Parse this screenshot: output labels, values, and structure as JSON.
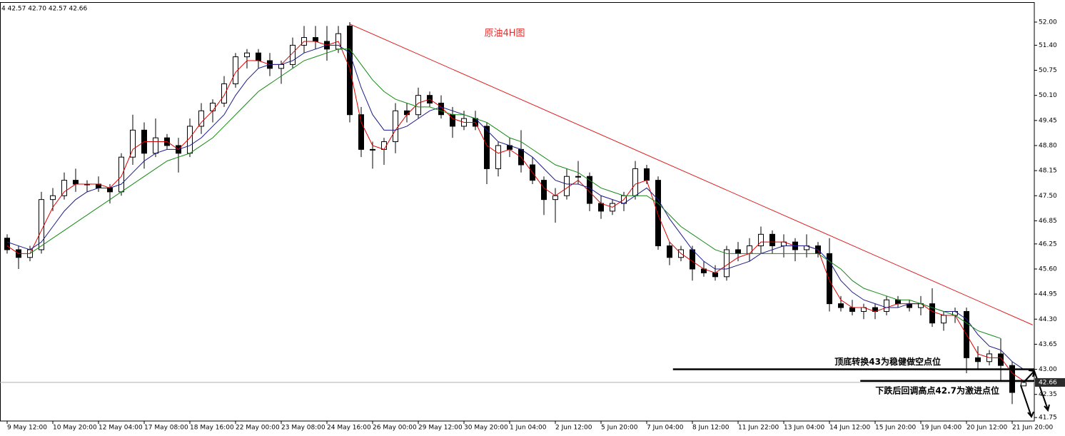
{
  "chart_data": {
    "type": "candlestick",
    "header": "4  42.57 42.70 42.57 42.66",
    "title": "原油4H图",
    "categories": [
      "9 May 12:00",
      null,
      null,
      null,
      "10 May 20:00",
      null,
      null,
      null,
      "12 May 04:00",
      null,
      null,
      null,
      "17 May 08:00",
      null,
      null,
      null,
      "18 May 16:00",
      null,
      null,
      null,
      "22 May 00:00",
      null,
      null,
      null,
      "23 May 08:00",
      null,
      null,
      null,
      "24 May 16:00",
      null,
      null,
      null,
      "26 May 00:00",
      null,
      null,
      null,
      "29 May 12:00",
      null,
      null,
      null,
      "30 May 20:00",
      null,
      null,
      null,
      "1 Jun 04:00",
      null,
      null,
      null,
      "2 Jun 12:00",
      null,
      null,
      null,
      "5 Jun 20:00",
      null,
      null,
      null,
      "7 Jun 04:00",
      null,
      null,
      null,
      "8 Jun 12:00",
      null,
      null,
      null,
      "11 Jun 22:00",
      null,
      null,
      null,
      "13 Jun 04:00",
      null,
      null,
      null,
      "14 Jun 12:00",
      null,
      null,
      null,
      "15 Jun 20:00",
      null,
      null,
      null,
      "19 Jun 04:00",
      null,
      null,
      null,
      "20 Jun 12:00",
      null,
      null,
      null,
      "21 Jun 20:00",
      null
    ],
    "open": [
      46.4,
      46.1,
      45.9,
      46.1,
      47.4,
      47.5,
      47.9,
      47.8,
      47.8,
      47.7,
      47.6,
      48.5,
      49.2,
      48.6,
      49.0,
      48.8,
      48.6,
      49.3,
      49.7,
      49.9,
      50.4,
      51.1,
      51.2,
      51.0,
      50.8,
      50.9,
      51.4,
      51.6,
      51.5,
      51.3,
      51.9,
      49.6,
      48.7,
      48.7,
      48.9,
      49.7,
      49.6,
      50.1,
      49.9,
      49.6,
      49.3,
      49.5,
      49.3,
      48.2,
      48.8,
      48.7,
      48.3,
      47.9,
      47.4,
      47.5,
      48.0,
      48.0,
      47.3,
      47.1,
      47.3,
      47.5,
      48.2,
      47.9,
      46.2,
      45.9,
      46.1,
      45.6,
      45.5,
      45.4,
      46.1,
      46.0,
      46.2,
      46.5,
      46.2,
      46.3,
      46.1,
      46.2,
      46.0,
      44.7,
      44.6,
      44.5,
      44.6,
      44.5,
      44.8,
      44.7,
      44.6,
      44.7,
      44.2,
      44.4,
      44.5,
      43.3,
      43.2,
      43.4,
      43.1,
      42.57
    ],
    "high": [
      46.5,
      46.2,
      46.2,
      47.6,
      47.7,
      48.1,
      48.2,
      47.9,
      48.0,
      47.8,
      48.6,
      49.6,
      49.4,
      49.5,
      49.1,
      49.0,
      49.5,
      49.9,
      50.0,
      50.6,
      51.2,
      51.3,
      51.3,
      51.2,
      51.0,
      51.6,
      51.9,
      51.9,
      51.9,
      51.9,
      52.0,
      49.8,
      48.9,
      49.0,
      49.9,
      49.9,
      50.3,
      50.2,
      50.1,
      49.8,
      49.7,
      49.7,
      49.4,
      48.9,
      49.0,
      49.2,
      48.5,
      48.0,
      47.7,
      48.2,
      48.4,
      48.1,
      47.5,
      47.4,
      47.6,
      48.4,
      48.3,
      48.0,
      46.3,
      46.2,
      46.2,
      45.8,
      45.7,
      46.2,
      46.3,
      46.4,
      46.7,
      46.6,
      46.5,
      46.4,
      46.5,
      46.3,
      46.4,
      44.9,
      44.8,
      44.7,
      44.7,
      44.9,
      44.9,
      44.8,
      44.9,
      45.1,
      44.5,
      44.6,
      44.6,
      43.6,
      43.5,
      43.8,
      43.2,
      42.7
    ],
    "low": [
      46.0,
      45.6,
      45.8,
      46.0,
      47.1,
      47.4,
      47.6,
      47.6,
      47.6,
      47.3,
      47.5,
      48.3,
      48.2,
      48.5,
      48.7,
      48.1,
      48.5,
      49.1,
      49.4,
      49.8,
      50.3,
      50.8,
      50.8,
      50.6,
      50.4,
      50.8,
      51.2,
      51.3,
      51.0,
      51.2,
      49.4,
      48.5,
      48.2,
      48.3,
      48.6,
      49.4,
      49.5,
      49.8,
      49.5,
      49.0,
      49.2,
      49.2,
      47.8,
      48.0,
      48.5,
      48.1,
      47.8,
      47.0,
      46.8,
      47.4,
      47.8,
      47.1,
      46.9,
      47.0,
      47.1,
      47.4,
      47.8,
      46.1,
      45.7,
      45.8,
      45.3,
      45.4,
      45.3,
      45.3,
      45.8,
      45.8,
      46.0,
      46.0,
      45.9,
      45.8,
      45.9,
      45.9,
      44.5,
      44.5,
      44.4,
      44.3,
      44.3,
      44.4,
      44.6,
      44.5,
      44.4,
      44.1,
      44.0,
      44.2,
      42.9,
      43.0,
      43.1,
      42.7,
      42.1,
      42.57
    ],
    "close": [
      46.1,
      45.9,
      46.1,
      47.4,
      47.5,
      47.9,
      47.8,
      47.8,
      47.7,
      47.6,
      48.5,
      49.2,
      48.6,
      49.0,
      48.8,
      48.6,
      49.3,
      49.7,
      49.9,
      50.4,
      51.1,
      51.2,
      51.0,
      50.8,
      50.9,
      51.4,
      51.6,
      51.5,
      51.3,
      51.7,
      49.6,
      48.7,
      48.7,
      48.9,
      49.7,
      49.6,
      50.1,
      49.9,
      49.6,
      49.3,
      49.5,
      49.3,
      48.2,
      48.8,
      48.7,
      48.3,
      47.9,
      47.4,
      47.5,
      48.0,
      48.0,
      47.3,
      47.1,
      47.3,
      47.5,
      48.2,
      47.9,
      46.2,
      45.9,
      46.1,
      45.6,
      45.5,
      45.4,
      46.1,
      46.0,
      46.2,
      46.5,
      46.2,
      46.3,
      46.1,
      46.2,
      46.0,
      44.7,
      44.6,
      44.5,
      44.6,
      44.5,
      44.8,
      44.7,
      44.6,
      44.7,
      44.2,
      44.4,
      44.5,
      43.3,
      43.2,
      43.4,
      43.1,
      42.4,
      42.66
    ],
    "lines": [
      {
        "color": "#e00000",
        "values": [
          46.2,
          46.0,
          46.0,
          46.6,
          47.2,
          47.6,
          47.8,
          47.8,
          47.8,
          47.7,
          48.0,
          48.7,
          48.9,
          48.9,
          48.9,
          48.7,
          49.0,
          49.4,
          49.7,
          50.1,
          50.7,
          51.0,
          51.0,
          50.9,
          50.9,
          51.2,
          51.5,
          51.5,
          51.4,
          51.5,
          50.8,
          49.4,
          48.8,
          48.7,
          49.2,
          49.6,
          49.9,
          50.0,
          49.8,
          49.5,
          49.4,
          49.4,
          48.8,
          48.6,
          48.7,
          48.5,
          48.1,
          47.7,
          47.5,
          47.7,
          47.9,
          47.6,
          47.3,
          47.2,
          47.4,
          47.8,
          47.9,
          47.0,
          46.3,
          46.0,
          45.8,
          45.6,
          45.5,
          45.7,
          45.9,
          46.0,
          46.3,
          46.3,
          46.3,
          46.2,
          46.2,
          46.1,
          45.3,
          44.8,
          44.6,
          44.6,
          44.5,
          44.6,
          44.7,
          44.7,
          44.7,
          44.5,
          44.4,
          44.4,
          43.9,
          43.4,
          43.3,
          43.3,
          42.9,
          42.7
        ]
      },
      {
        "color": "#1a1a8c",
        "values": [
          46.3,
          46.2,
          46.1,
          46.3,
          46.7,
          47.1,
          47.4,
          47.6,
          47.7,
          47.7,
          47.8,
          48.1,
          48.4,
          48.6,
          48.7,
          48.7,
          48.8,
          49.0,
          49.3,
          49.6,
          50.1,
          50.5,
          50.8,
          50.9,
          50.9,
          51.0,
          51.2,
          51.3,
          51.4,
          51.4,
          51.2,
          50.3,
          49.6,
          49.2,
          49.2,
          49.3,
          49.5,
          49.7,
          49.8,
          49.7,
          49.6,
          49.5,
          49.2,
          48.9,
          48.8,
          48.7,
          48.5,
          48.2,
          47.9,
          47.8,
          47.8,
          47.7,
          47.5,
          47.4,
          47.3,
          47.5,
          47.7,
          47.4,
          46.9,
          46.5,
          46.1,
          45.8,
          45.6,
          45.6,
          45.7,
          45.8,
          46.0,
          46.1,
          46.2,
          46.2,
          46.2,
          46.1,
          45.8,
          45.3,
          45.0,
          44.8,
          44.7,
          44.6,
          44.6,
          44.7,
          44.7,
          44.6,
          44.5,
          44.5,
          44.3,
          43.9,
          43.6,
          43.5,
          43.2,
          43.0
        ]
      },
      {
        "color": "#168a16",
        "values": [
          null,
          null,
          46.0,
          46.2,
          46.4,
          46.6,
          46.8,
          47.0,
          47.2,
          47.4,
          47.6,
          47.8,
          48.0,
          48.2,
          48.4,
          48.5,
          48.6,
          48.8,
          49.0,
          49.3,
          49.6,
          49.9,
          50.2,
          50.4,
          50.6,
          50.8,
          51.0,
          51.1,
          51.2,
          51.3,
          51.3,
          50.9,
          50.5,
          50.2,
          50.0,
          49.9,
          49.8,
          49.8,
          49.7,
          49.6,
          49.6,
          49.5,
          49.4,
          49.2,
          49.0,
          48.9,
          48.7,
          48.5,
          48.3,
          48.2,
          48.1,
          47.9,
          47.7,
          47.6,
          47.5,
          47.5,
          47.5,
          47.3,
          47.0,
          46.7,
          46.5,
          46.3,
          46.1,
          46.0,
          46.0,
          46.0,
          46.0,
          46.0,
          46.0,
          46.0,
          46.0,
          46.0,
          45.8,
          45.6,
          45.3,
          45.1,
          45.0,
          44.9,
          44.8,
          44.8,
          44.7,
          44.6,
          44.5,
          44.4,
          44.2,
          44.0,
          43.9,
          43.8,
          null,
          null
        ]
      }
    ],
    "trendline": {
      "color": "#e02020",
      "from": [
        30,
        51.95
      ],
      "to": [
        89.8,
        44.15
      ]
    },
    "levels": [
      {
        "value": 43.0,
        "from": 58.3,
        "text": "顶底转换43为稳健做空点位"
      },
      {
        "value": 42.7,
        "from": 74.7,
        "text": "下跌后回调高点42.7为激进点位"
      }
    ],
    "last_price": {
      "value": 42.66,
      "label": "42.66"
    },
    "ylim": [
      41.66,
      52.48
    ],
    "yticks": [
      {
        "value": 52,
        "label": "52.00"
      },
      {
        "value": 51.4,
        "label": "51.40"
      },
      {
        "value": 50.75,
        "label": "50.75"
      },
      {
        "value": 50.1,
        "label": "50.10"
      },
      {
        "value": 49.45,
        "label": "49.45"
      },
      {
        "value": 48.8,
        "label": "48.80"
      },
      {
        "value": 48.15,
        "label": "48.15"
      },
      {
        "value": 47.5,
        "label": "47.50"
      },
      {
        "value": 46.85,
        "label": "46.85"
      },
      {
        "value": 46.25,
        "label": "46.25"
      },
      {
        "value": 45.6,
        "label": "45.60"
      },
      {
        "value": 44.95,
        "label": "44.95"
      },
      {
        "value": 44.3,
        "label": "44.30"
      },
      {
        "value": 43.65,
        "label": "43.65"
      },
      {
        "value": 43,
        "label": "43.00"
      },
      {
        "value": 42.35,
        "label": "42.35"
      },
      {
        "value": 41.75,
        "label": "41.75"
      }
    ]
  }
}
